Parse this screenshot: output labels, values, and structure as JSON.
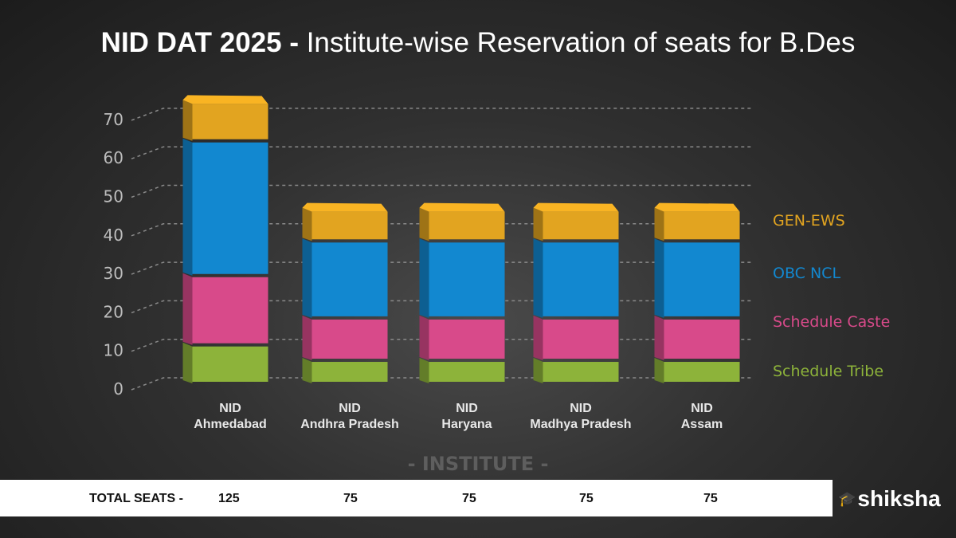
{
  "title": {
    "bold": "NID DAT 2025 -",
    "rest": " Institute-wise Reservation of seats for B.Des"
  },
  "chart_data": {
    "type": "bar",
    "stacked": true,
    "title": "NID DAT 2025 - Institute-wise Reservation of seats for B.Des",
    "xlabel": "- INSTITUTE -",
    "ylabel": "",
    "ylim": [
      0,
      75
    ],
    "yticks": [
      "0",
      "10",
      "20",
      "30",
      "40",
      "50",
      "60",
      "70"
    ],
    "grid": true,
    "legend_position": "right",
    "categories": [
      [
        "NID",
        "Ahmedabad"
      ],
      [
        "NID",
        "Andhra Pradesh"
      ],
      [
        "NID",
        "Haryana"
      ],
      [
        "NID",
        "Madhya Pradesh"
      ],
      [
        "NID",
        "Assam"
      ]
    ],
    "series": [
      {
        "name": "Schedule Tribe",
        "color": "#8db33a",
        "values": [
          10,
          6,
          6,
          6,
          6
        ]
      },
      {
        "name": "Schedule Caste",
        "color": "#d84a8a",
        "values": [
          18,
          11,
          11,
          11,
          11
        ]
      },
      {
        "name": "OBC NCL",
        "color": "#1288d0",
        "values": [
          35,
          20,
          20,
          20,
          20
        ]
      },
      {
        "name": "GEN-EWS",
        "color": "#e2a420",
        "values": [
          10,
          8,
          8,
          8,
          8
        ]
      }
    ]
  },
  "legend": [
    "GEN-EWS",
    "OBC NCL",
    "Schedule Caste",
    "Schedule Tribe"
  ],
  "totals": {
    "label": "TOTAL SEATS -",
    "values": [
      "125",
      "75",
      "75",
      "75",
      "75"
    ]
  },
  "logo": "shiksha"
}
